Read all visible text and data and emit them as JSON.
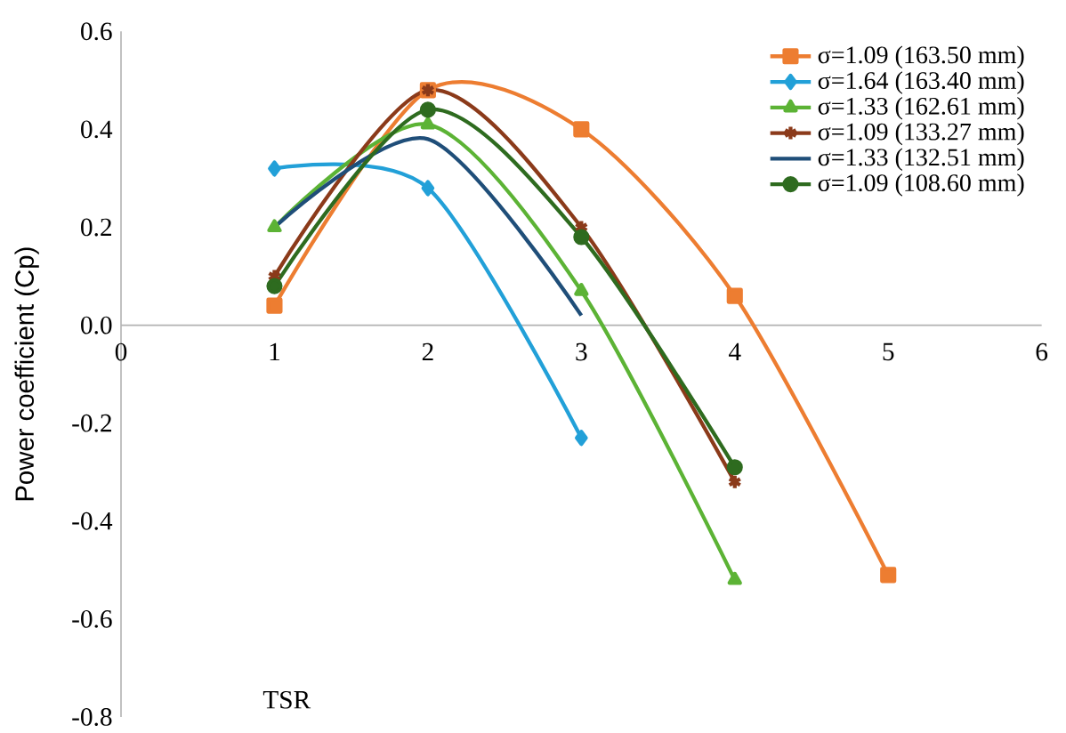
{
  "chart_data": {
    "type": "line",
    "xlabel": "TSR",
    "ylabel": "Power coefficient (Cp)",
    "xlim": [
      0,
      6
    ],
    "xticks": [
      0,
      1,
      2,
      3,
      4,
      5,
      6
    ],
    "ylim": [
      -0.8,
      0.6
    ],
    "yticks": [
      {
        "value": -0.8,
        "label": "-0.8"
      },
      {
        "value": -0.6,
        "label": "-0.6"
      },
      {
        "value": -0.4,
        "label": "-0.4"
      },
      {
        "value": -0.2,
        "label": "-0.2"
      },
      {
        "value": 0,
        "label": "0.0"
      },
      {
        "value": 0.2,
        "label": "0.2"
      },
      {
        "value": 0.4,
        "label": "0.4"
      },
      {
        "value": 0.6,
        "label": "0.6"
      }
    ],
    "grid": false,
    "legend": "top right",
    "series": [
      {
        "name": "σ=1.09 (163.50 mm)",
        "color": "#ed7d31",
        "marker": "square",
        "x": [
          1,
          2,
          3,
          4,
          5
        ],
        "values": [
          0.04,
          0.48,
          0.4,
          0.06,
          -0.51
        ]
      },
      {
        "name": "σ=1.64 (163.40 mm)",
        "color": "#22a0d8",
        "marker": "diamond",
        "x": [
          1,
          2,
          3
        ],
        "values": [
          0.32,
          0.28,
          -0.23
        ]
      },
      {
        "name": "σ=1.33 (162.61 mm)",
        "color": "#5cb335",
        "marker": "triangle",
        "x": [
          1,
          2,
          3,
          4
        ],
        "values": [
          0.2,
          0.41,
          0.07,
          -0.52
        ]
      },
      {
        "name": "σ=1.09 (133.27 mm)",
        "color": "#8b3a1a",
        "marker": "cross",
        "x": [
          1,
          2,
          3,
          4
        ],
        "values": [
          0.1,
          0.48,
          0.2,
          -0.32
        ]
      },
      {
        "name": "σ=1.33 (132.51 mm)",
        "color": "#1f4e79",
        "marker": "none",
        "x": [
          1,
          2,
          3
        ],
        "values": [
          0.2,
          0.38,
          0.02
        ]
      },
      {
        "name": "σ=1.09 (108.60 mm)",
        "color": "#2e6b1f",
        "marker": "circle",
        "x": [
          1,
          2,
          3,
          4
        ],
        "values": [
          0.08,
          0.44,
          0.18,
          -0.29
        ]
      }
    ]
  }
}
